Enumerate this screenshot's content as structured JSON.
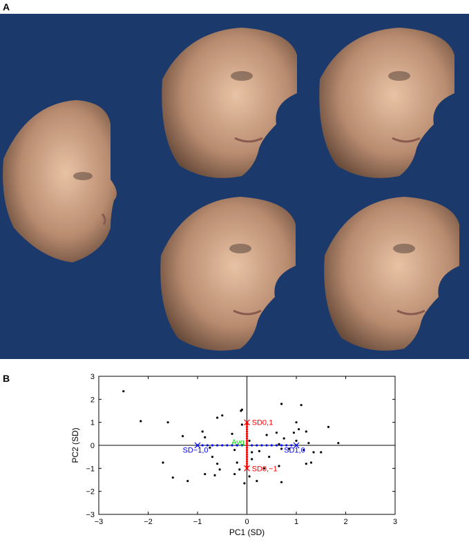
{
  "panel_a": {
    "label": "A",
    "background_color": "#1b3a6b",
    "faces": [
      {
        "id": "average",
        "description_icon": "face-render-icon"
      },
      {
        "id": "pc1-plus-pc2-plus"
      },
      {
        "id": "pc1-plus-pc2-plus-b"
      },
      {
        "id": "pc1-minus"
      },
      {
        "id": "pc1-minus-b"
      }
    ]
  },
  "panel_b": {
    "label": "B"
  },
  "chart_data": {
    "type": "scatter",
    "xlabel": "PC1 (SD)",
    "ylabel": "PC2 (SD)",
    "xlim": [
      -3,
      3
    ],
    "ylim": [
      -3,
      3
    ],
    "xticks": [
      -3,
      -2,
      -1,
      0,
      1,
      2,
      3
    ],
    "yticks": [
      -3,
      -2,
      -1,
      0,
      1,
      2,
      3
    ],
    "grid": false,
    "crosshair_at_origin": true,
    "series": [
      {
        "marker": "dot",
        "color": "#000000",
        "points": [
          [
            -2.5,
            2.35
          ],
          [
            -2.15,
            1.05
          ],
          [
            -1.6,
            1.0
          ],
          [
            -1.3,
            0.4
          ],
          [
            -1.7,
            -0.75
          ],
          [
            -1.5,
            -1.4
          ],
          [
            -1.2,
            -1.55
          ],
          [
            -0.9,
            0.6
          ],
          [
            -0.85,
            0.35
          ],
          [
            -0.75,
            -0.1
          ],
          [
            -0.7,
            -0.5
          ],
          [
            -0.6,
            -0.8
          ],
          [
            -0.55,
            -1.05
          ],
          [
            -0.85,
            -1.25
          ],
          [
            -0.65,
            -1.3
          ],
          [
            -0.5,
            1.3
          ],
          [
            -0.6,
            1.2
          ],
          [
            -0.3,
            0.5
          ],
          [
            -0.25,
            -0.2
          ],
          [
            -0.2,
            -0.75
          ],
          [
            -0.25,
            -1.25
          ],
          [
            -0.15,
            -1.05
          ],
          [
            -0.1,
            1.55
          ],
          [
            -0.12,
            1.5
          ],
          [
            -0.1,
            0.9
          ],
          [
            0.05,
            0.2
          ],
          [
            0.1,
            -0.3
          ],
          [
            0.1,
            -0.6
          ],
          [
            0.25,
            -0.25
          ],
          [
            0.35,
            -1.0
          ],
          [
            0.2,
            -1.55
          ],
          [
            0.4,
            0.45
          ],
          [
            0.45,
            -0.5
          ],
          [
            0.6,
            0.55
          ],
          [
            0.65,
            0.05
          ],
          [
            0.7,
            -0.15
          ],
          [
            0.65,
            -0.9
          ],
          [
            0.7,
            -1.6
          ],
          [
            0.7,
            1.8
          ],
          [
            0.75,
            0.3
          ],
          [
            0.85,
            -0.15
          ],
          [
            0.95,
            0.55
          ],
          [
            1.0,
            0.2
          ],
          [
            1.0,
            1.0
          ],
          [
            1.1,
            1.75
          ],
          [
            1.05,
            0.7
          ],
          [
            1.2,
            0.6
          ],
          [
            1.25,
            0.1
          ],
          [
            1.15,
            -0.2
          ],
          [
            1.35,
            -0.3
          ],
          [
            1.3,
            -0.75
          ],
          [
            1.2,
            -0.8
          ],
          [
            1.5,
            -0.3
          ],
          [
            1.65,
            0.8
          ],
          [
            1.85,
            0.1
          ],
          [
            -0.05,
            -1.65
          ],
          [
            0.05,
            -1.35
          ]
        ]
      },
      {
        "name": "PC1 axis",
        "marker": "dot",
        "color": "#0000ff",
        "from": [
          -1,
          0
        ],
        "to": [
          1,
          0
        ],
        "steps": 21
      },
      {
        "name": "PC2 axis",
        "marker": "dot",
        "color": "#ff0000",
        "from": [
          0,
          -1
        ],
        "to": [
          0,
          1
        ],
        "steps": 21
      }
    ],
    "annotations": [
      {
        "text": "SD0,1",
        "x": 0.0,
        "y": 1.0,
        "color": "#ff0000",
        "marker": "x",
        "align": "left",
        "dx": 0.1
      },
      {
        "text": "SD0,−1",
        "x": 0.0,
        "y": -1.0,
        "color": "#ff0000",
        "marker": "x",
        "align": "left",
        "dx": 0.1
      },
      {
        "text": "SD−1,0",
        "x": -1.0,
        "y": 0.0,
        "color": "#0000ff",
        "marker": "x",
        "align": "left",
        "dx": -0.3,
        "dy": -0.2
      },
      {
        "text": "SD1,0",
        "x": 1.0,
        "y": 0.0,
        "color": "#0000ff",
        "marker": "x",
        "align": "left",
        "dx": -0.25,
        "dy": -0.2
      },
      {
        "text": "Avg",
        "x": 0.0,
        "y": 0.0,
        "color": "#00dd00",
        "marker": "none",
        "align": "right",
        "dx": -0.05,
        "dy": 0.15
      }
    ]
  }
}
